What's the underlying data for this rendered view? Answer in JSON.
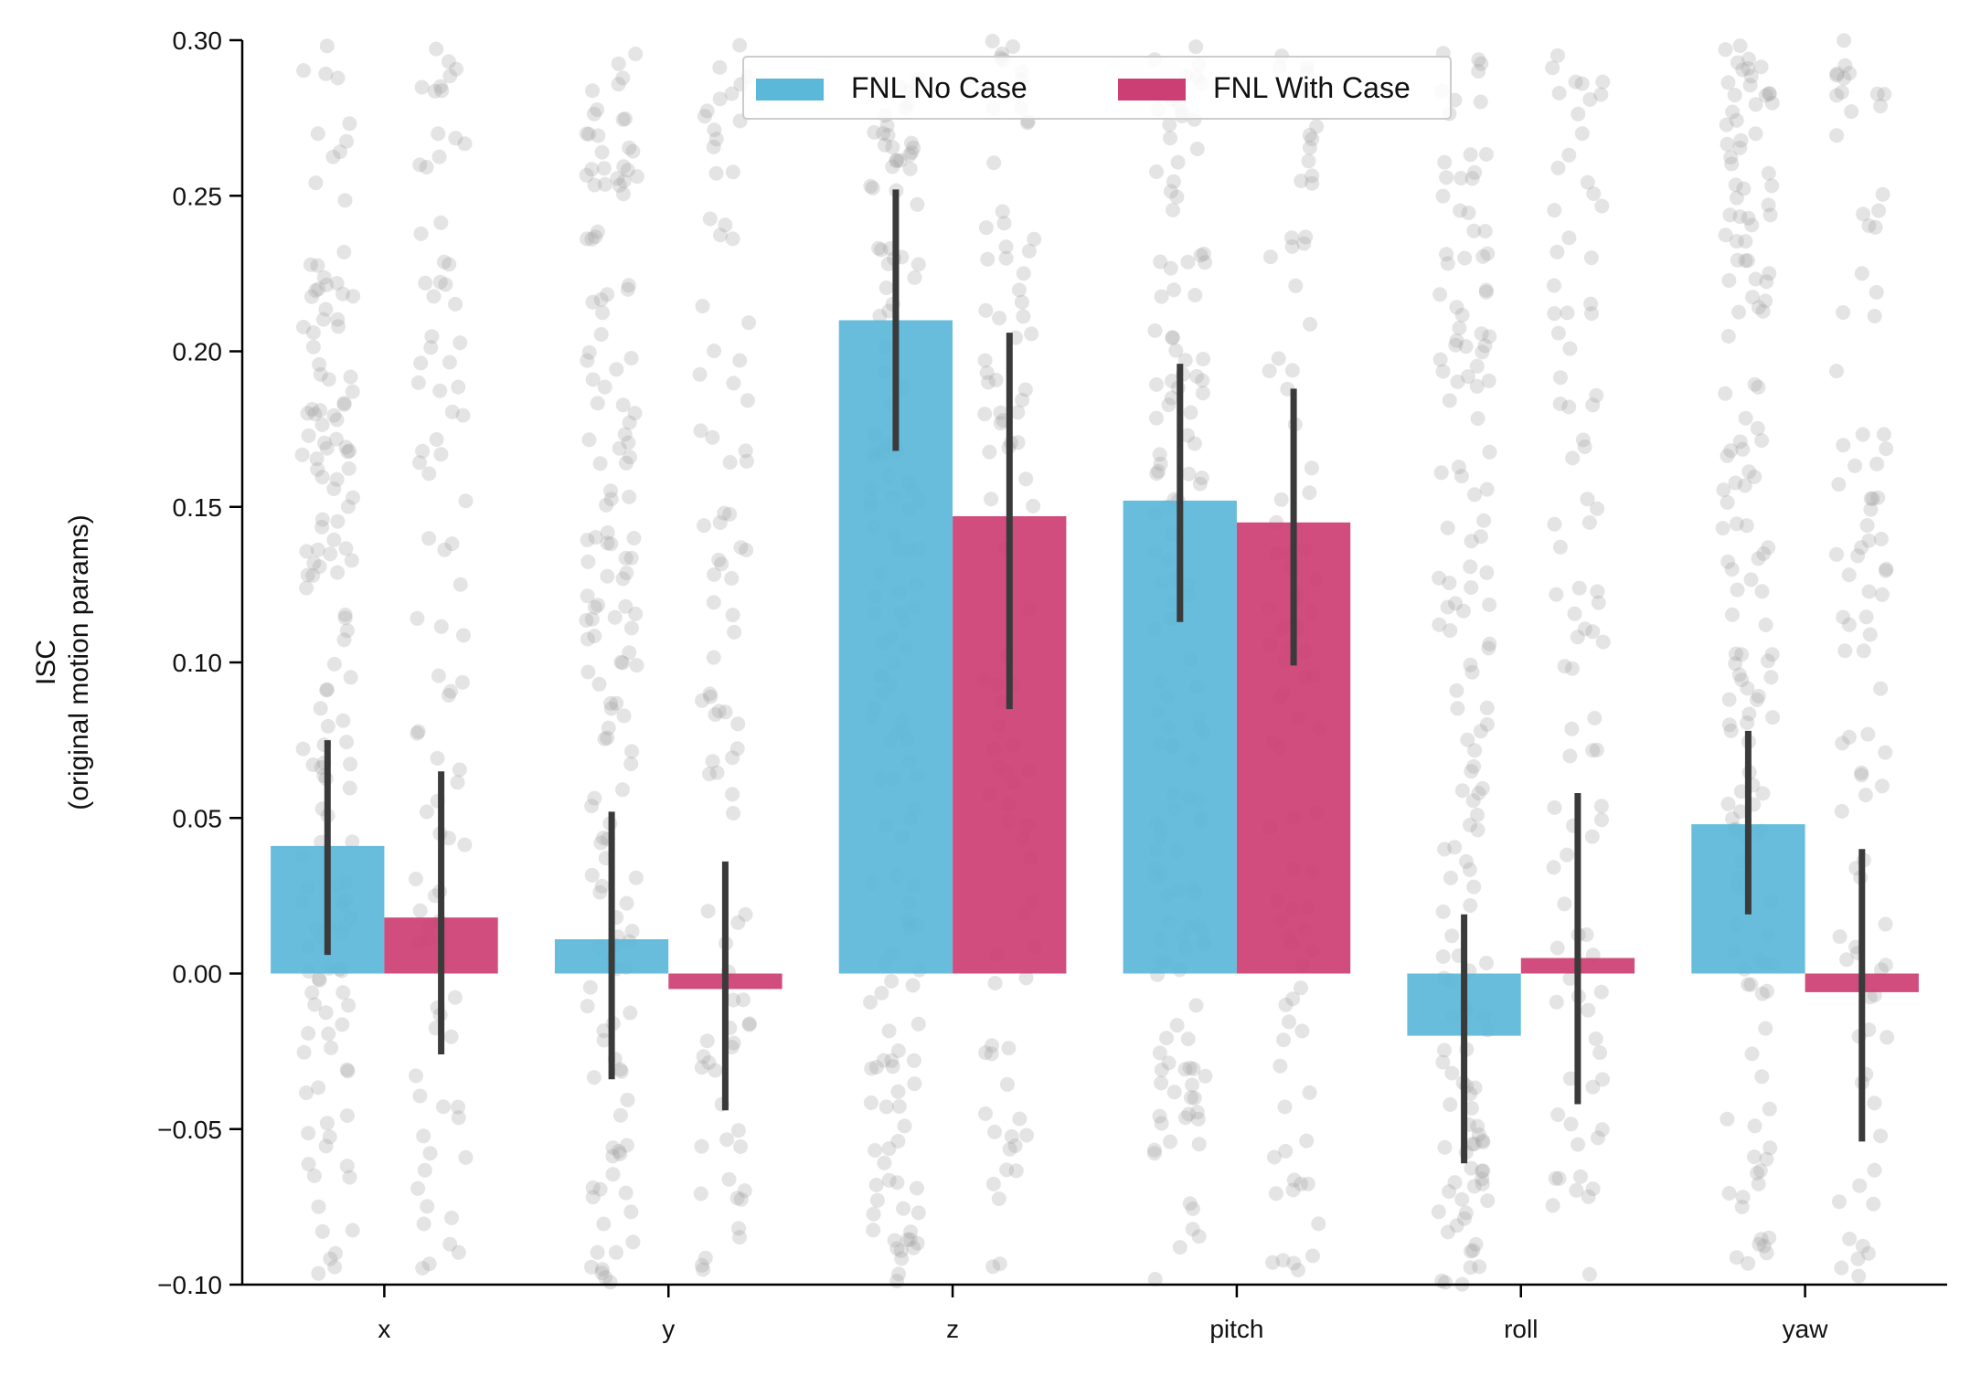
{
  "chart_data": {
    "type": "bar",
    "title": "",
    "xlabel": "",
    "ylabel_lines": [
      "ISC",
      "(original motion params)"
    ],
    "categories": [
      "x",
      "y",
      "z",
      "pitch",
      "roll",
      "yaw"
    ],
    "ylim": [
      -0.1,
      0.3
    ],
    "yticks": [
      -0.1,
      -0.05,
      0.0,
      0.05,
      0.1,
      0.15,
      0.2,
      0.25,
      0.3
    ],
    "ytick_labels": [
      "−0.10",
      "−0.05",
      "0.00",
      "0.05",
      "0.10",
      "0.15",
      "0.20",
      "0.25",
      "0.30"
    ],
    "legend_position": "top-center",
    "grid": false,
    "series": [
      {
        "name": "FNL No Case",
        "color": "#5bb8d8",
        "values": [
          0.041,
          0.011,
          0.21,
          0.152,
          -0.02,
          0.048
        ],
        "ci_low": [
          0.006,
          -0.034,
          0.168,
          0.113,
          -0.061,
          0.019
        ],
        "ci_high": [
          0.075,
          0.052,
          0.252,
          0.196,
          0.019,
          0.078
        ]
      },
      {
        "name": "FNL With Case",
        "color": "#cc3f74",
        "values": [
          0.018,
          -0.005,
          0.147,
          0.145,
          0.005,
          -0.006
        ],
        "ci_low": [
          -0.026,
          -0.044,
          0.085,
          0.099,
          -0.042,
          -0.054
        ],
        "ci_high": [
          0.065,
          0.036,
          0.206,
          0.188,
          0.058,
          0.04
        ]
      }
    ],
    "errorbar_color": "#3a3a3a",
    "point_color": "#9e9e9e"
  }
}
